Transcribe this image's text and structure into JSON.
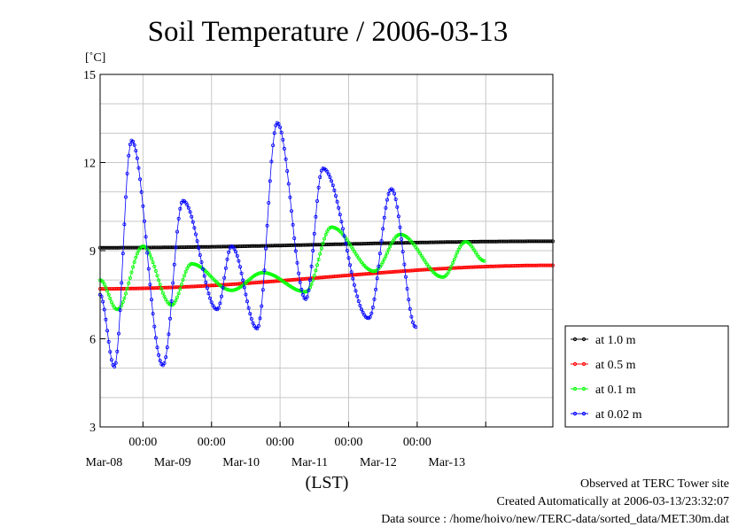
{
  "chart_data": {
    "type": "line",
    "title": "Soil Temperature / 2006-03-13",
    "ylabel": "[˚C]",
    "xlabel": "(LST)",
    "ylim": [
      3,
      15
    ],
    "yticks": [
      3,
      6,
      9,
      12,
      15
    ],
    "xlim": [
      "2006-03-07T09:00",
      "2006-03-13T23:30"
    ],
    "xticks": [
      {
        "time": "2006-03-08T00:00",
        "label": "00:00",
        "date": "Mar-08"
      },
      {
        "time": "2006-03-09T00:00",
        "label": "00:00",
        "date": "Mar-09"
      },
      {
        "time": "2006-03-10T00:00",
        "label": "00:00",
        "date": "Mar-10"
      },
      {
        "time": "2006-03-11T00:00",
        "label": "00:00",
        "date": "Mar-11"
      },
      {
        "time": "2006-03-12T00:00",
        "label": "00:00",
        "date": "Mar-12"
      },
      {
        "time": "2006-03-13T00:00",
        "label": "",
        "date": "Mar-13"
      }
    ],
    "grid": true,
    "legend_position": "right",
    "series": [
      {
        "name": "at 1.0 m",
        "color": "#000000",
        "points": [
          [
            "2006-03-07T09:00",
            9.1
          ],
          [
            "2006-03-13T23:30",
            9.32
          ]
        ]
      },
      {
        "name": "at 0.5 m",
        "color": "#ff0000",
        "points": [
          [
            "2006-03-07T09:00",
            7.7
          ],
          [
            "2006-03-13T23:30",
            8.5
          ]
        ]
      },
      {
        "name": "at 0.1 m",
        "color": "#00ff00",
        "points": [
          [
            "2006-03-07T09:00",
            8.0
          ],
          [
            "2006-03-07T15:00",
            7.0
          ],
          [
            "2006-03-08T00:00",
            9.15
          ],
          [
            "2006-03-08T10:00",
            7.15
          ],
          [
            "2006-03-08T17:00",
            8.55
          ],
          [
            "2006-03-09T07:00",
            7.65
          ],
          [
            "2006-03-09T18:00",
            8.25
          ],
          [
            "2006-03-10T09:00",
            7.6
          ],
          [
            "2006-03-10T18:00",
            9.8
          ],
          [
            "2006-03-11T09:00",
            8.3
          ],
          [
            "2006-03-11T18:00",
            9.55
          ],
          [
            "2006-03-12T09:00",
            8.1
          ],
          [
            "2006-03-12T17:00",
            9.3
          ],
          [
            "2006-03-12T23:30",
            8.65
          ]
        ]
      },
      {
        "name": "at 0.02 m",
        "color": "#0000ff",
        "points": [
          [
            "2006-03-07T09:00",
            7.5
          ],
          [
            "2006-03-07T14:00",
            5.05
          ],
          [
            "2006-03-07T20:00",
            12.75
          ],
          [
            "2006-03-08T07:00",
            5.1
          ],
          [
            "2006-03-08T14:00",
            10.7
          ],
          [
            "2006-03-09T02:00",
            7.0
          ],
          [
            "2006-03-09T07:00",
            9.15
          ],
          [
            "2006-03-09T16:00",
            6.35
          ],
          [
            "2006-03-09T23:00",
            13.35
          ],
          [
            "2006-03-10T09:00",
            7.35
          ],
          [
            "2006-03-10T15:00",
            11.8
          ],
          [
            "2006-03-11T07:00",
            6.7
          ],
          [
            "2006-03-11T15:00",
            11.1
          ],
          [
            "2006-03-11T23:30",
            6.4
          ]
        ]
      }
    ]
  },
  "footer": {
    "line1": "Observed at TERC Tower site",
    "line2": "Created Automatically at 2006-03-13/23:32:07",
    "line3": "Data source : /home/hoivo/new/TERC-data/sorted_data/MET.30m.dat"
  }
}
